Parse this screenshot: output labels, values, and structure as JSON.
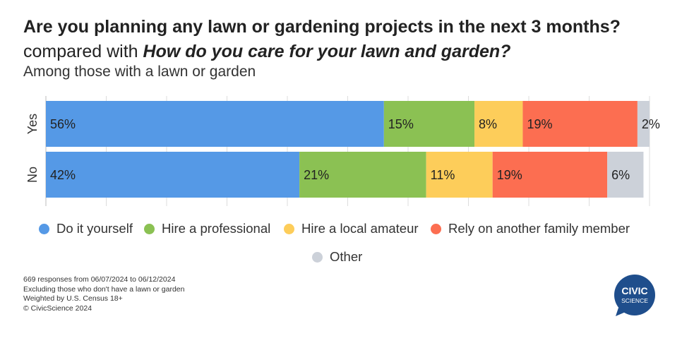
{
  "title": "Are you planning any lawn or gardening projects in the next 3 months?",
  "subtitle_prefix": "compared with ",
  "subtitle_question": "How do you care for your lawn and garden?",
  "subtitle2": "Among those with a lawn or garden",
  "legend": [
    {
      "label": "Do it yourself",
      "color": "#5599E6"
    },
    {
      "label": "Hire a professional",
      "color": "#8BC153"
    },
    {
      "label": "Hire a local amateur",
      "color": "#FDCD5A"
    },
    {
      "label": "Rely on another family member",
      "color": "#FC6E51"
    },
    {
      "label": "Other",
      "color": "#CCD1D9"
    }
  ],
  "chart_data": {
    "type": "bar",
    "orientation": "horizontal",
    "stacked": true,
    "percent": true,
    "categories": [
      "Yes",
      "No"
    ],
    "series": [
      {
        "name": "Do it yourself",
        "values": [
          56,
          42
        ],
        "labels": [
          "56%",
          "42%"
        ],
        "color": "#5599E6"
      },
      {
        "name": "Hire a professional",
        "values": [
          15,
          21
        ],
        "labels": [
          "15%",
          "21%"
        ],
        "color": "#8BC153"
      },
      {
        "name": "Hire a local amateur",
        "values": [
          8,
          11
        ],
        "labels": [
          "8%",
          "11%"
        ],
        "color": "#FDCD5A"
      },
      {
        "name": "Rely on another family member",
        "values": [
          19,
          19
        ],
        "labels": [
          "19%",
          "19%"
        ],
        "color": "#FC6E51"
      },
      {
        "name": "Other",
        "values": [
          2,
          6
        ],
        "labels": [
          "2%",
          "6%"
        ],
        "color": "#CCD1D9"
      }
    ],
    "xlim": [
      0,
      100
    ],
    "grid": true
  },
  "footer": [
    "669 responses from 06/07/2024 to 06/12/2024",
    "Excluding those who don't have a lawn or garden",
    "Weighted by U.S. Census 18+",
    "© CivicScience 2024"
  ],
  "logo": {
    "line1": "CIVIC",
    "line2": "SCIENCE",
    "color": "#1F4E8C"
  }
}
